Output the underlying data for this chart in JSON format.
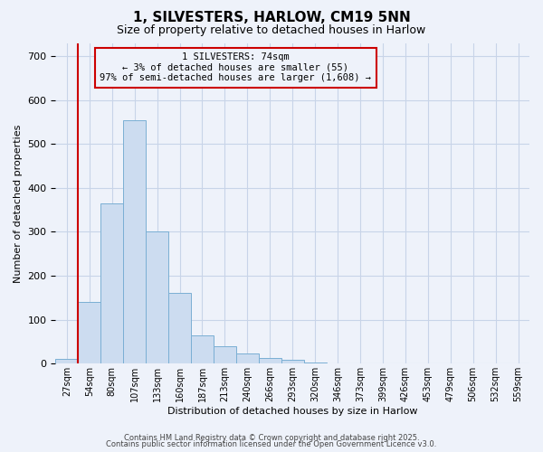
{
  "title": "1, SILVESTERS, HARLOW, CM19 5NN",
  "subtitle": "Size of property relative to detached houses in Harlow",
  "xlabel": "Distribution of detached houses by size in Harlow",
  "ylabel": "Number of detached properties",
  "bar_values": [
    10,
    140,
    365,
    555,
    300,
    162,
    65,
    40,
    23,
    13,
    8,
    2,
    0,
    0,
    0,
    0,
    0,
    0,
    0,
    0,
    0
  ],
  "bin_labels": [
    "27sqm",
    "54sqm",
    "80sqm",
    "107sqm",
    "133sqm",
    "160sqm",
    "187sqm",
    "213sqm",
    "240sqm",
    "266sqm",
    "293sqm",
    "320sqm",
    "346sqm",
    "373sqm",
    "399sqm",
    "426sqm",
    "453sqm",
    "479sqm",
    "506sqm",
    "532sqm",
    "559sqm"
  ],
  "bar_color": "#ccdcf0",
  "bar_edge_color": "#7aafd4",
  "grid_color": "#c8d4e8",
  "bg_color": "#eef2fa",
  "vline_color": "#cc0000",
  "vline_x_index": 1,
  "annotation_title": "1 SILVESTERS: 74sqm",
  "annotation_line1": "← 3% of detached houses are smaller (55)",
  "annotation_line2": "97% of semi-detached houses are larger (1,608) →",
  "ylim": [
    0,
    730
  ],
  "yticks": [
    0,
    100,
    200,
    300,
    400,
    500,
    600,
    700
  ],
  "footnote1": "Contains HM Land Registry data © Crown copyright and database right 2025.",
  "footnote2": "Contains public sector information licensed under the Open Government Licence v3.0."
}
